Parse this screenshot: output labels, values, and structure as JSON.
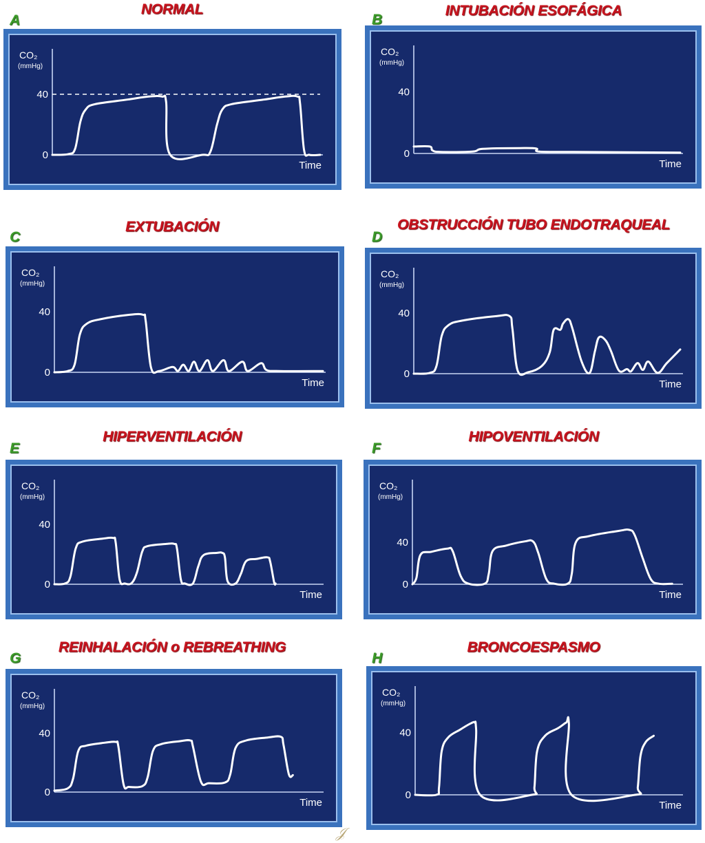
{
  "colors": {
    "title": "#c8141e",
    "letter": "#3d9b2a",
    "frame": "#3a72bd",
    "screen": "#162a6b",
    "trace": "#ffffff"
  },
  "axis": {
    "ylabel": "CO₂",
    "yunit": "(mmHg)",
    "xlabel": "Time",
    "tick_40": "40",
    "tick_0": "0"
  },
  "chart_data": [
    {
      "letter": "A",
      "title": "NORMAL",
      "type": "line",
      "ylim": [
        0,
        70
      ],
      "xlim": [
        0,
        100
      ],
      "reference_line": 40,
      "points": [
        [
          0,
          0
        ],
        [
          6,
          0.5
        ],
        [
          8.5,
          4
        ],
        [
          10.5,
          22
        ],
        [
          12.5,
          30
        ],
        [
          16,
          33.5
        ],
        [
          28,
          36.5
        ],
        [
          36,
          38.5
        ],
        [
          41,
          38.5
        ],
        [
          42.5,
          35
        ],
        [
          44,
          0
        ],
        [
          56,
          0
        ],
        [
          59,
          2
        ],
        [
          61.5,
          20
        ],
        [
          63.5,
          30
        ],
        [
          67,
          33.5
        ],
        [
          79,
          36.5
        ],
        [
          87,
          38.5
        ],
        [
          91.5,
          38.5
        ],
        [
          92.5,
          34
        ],
        [
          94,
          3
        ],
        [
          96,
          0
        ],
        [
          100,
          0
        ]
      ]
    },
    {
      "letter": "B",
      "title": "INTUBACIÓN ESOFÁGICA",
      "type": "line",
      "ylim": [
        0,
        70
      ],
      "xlim": [
        0,
        100
      ],
      "points": [
        [
          0,
          4.5
        ],
        [
          6,
          4.5
        ],
        [
          7,
          2
        ],
        [
          10,
          1
        ],
        [
          22,
          1.2
        ],
        [
          26,
          3
        ],
        [
          40,
          3.5
        ],
        [
          46,
          3.2
        ],
        [
          47,
          1.2
        ],
        [
          60,
          1
        ],
        [
          100,
          0.6
        ]
      ]
    },
    {
      "letter": "C",
      "title": "EXTUBACIÓN",
      "type": "line",
      "ylim": [
        0,
        70
      ],
      "xlim": [
        0,
        100
      ],
      "points": [
        [
          0,
          0
        ],
        [
          5,
          0.8
        ],
        [
          7.5,
          5
        ],
        [
          9.5,
          25
        ],
        [
          12,
          32
        ],
        [
          17,
          35
        ],
        [
          28,
          38
        ],
        [
          33,
          38
        ],
        [
          34,
          34
        ],
        [
          36,
          3
        ],
        [
          39,
          0.8
        ],
        [
          44,
          3.5
        ],
        [
          46,
          0.8
        ],
        [
          48,
          5
        ],
        [
          50,
          0.8
        ],
        [
          52,
          7
        ],
        [
          54,
          0.8
        ],
        [
          57,
          8
        ],
        [
          59,
          0.8
        ],
        [
          63,
          8
        ],
        [
          65,
          0.8
        ],
        [
          70,
          7
        ],
        [
          72,
          0.8
        ],
        [
          77,
          6
        ],
        [
          79,
          1.5
        ],
        [
          84,
          0.8
        ],
        [
          100,
          0.8
        ]
      ]
    },
    {
      "letter": "D",
      "title": "OBSTRUCCIÓN TUBO ENDOTRAQUEAL",
      "type": "line",
      "ylim": [
        0,
        70
      ],
      "xlim": [
        0,
        100
      ],
      "points": [
        [
          0,
          0
        ],
        [
          6,
          0.5
        ],
        [
          8.5,
          5
        ],
        [
          10.5,
          25
        ],
        [
          13,
          32
        ],
        [
          18,
          35
        ],
        [
          31,
          38
        ],
        [
          36,
          38
        ],
        [
          37,
          30
        ],
        [
          39,
          2
        ],
        [
          43,
          1
        ],
        [
          48,
          5
        ],
        [
          51,
          14
        ],
        [
          52.5,
          29
        ],
        [
          55,
          29
        ],
        [
          56,
          33
        ],
        [
          58,
          36
        ],
        [
          59.5,
          30
        ],
        [
          63,
          8
        ],
        [
          66,
          0.5
        ],
        [
          68,
          15
        ],
        [
          69.5,
          24
        ],
        [
          72,
          22
        ],
        [
          74,
          15
        ],
        [
          77,
          2
        ],
        [
          80,
          3
        ],
        [
          81.5,
          1.5
        ],
        [
          84,
          7
        ],
        [
          86,
          2.5
        ],
        [
          88,
          8
        ],
        [
          91.5,
          0.5
        ],
        [
          95,
          7
        ],
        [
          100,
          16
        ]
      ]
    },
    {
      "letter": "E",
      "title": "HIPERVENTILACIÓN",
      "type": "line",
      "ylim": [
        0,
        70
      ],
      "xlim": [
        0,
        100
      ],
      "points": [
        [
          0,
          0
        ],
        [
          4,
          0.5
        ],
        [
          6,
          5
        ],
        [
          8,
          24
        ],
        [
          10.5,
          28.5
        ],
        [
          18,
          30.5
        ],
        [
          22,
          31
        ],
        [
          23,
          28
        ],
        [
          24.5,
          3
        ],
        [
          26.5,
          0.5
        ],
        [
          29,
          0.8
        ],
        [
          31,
          8
        ],
        [
          33,
          22
        ],
        [
          35,
          25.5
        ],
        [
          42,
          27
        ],
        [
          45,
          27
        ],
        [
          46,
          24
        ],
        [
          47.5,
          3
        ],
        [
          49,
          0.5
        ],
        [
          52,
          0.5
        ],
        [
          54,
          12
        ],
        [
          56,
          19.5
        ],
        [
          61,
          21
        ],
        [
          63,
          21
        ],
        [
          64,
          18
        ],
        [
          65,
          2
        ],
        [
          68,
          0.5
        ],
        [
          70,
          7
        ],
        [
          72,
          15.5
        ],
        [
          76,
          17
        ],
        [
          80,
          18
        ],
        [
          81,
          15
        ],
        [
          82.5,
          1
        ],
        [
          83,
          0.5
        ]
      ]
    },
    {
      "letter": "F",
      "title": "HIPOVENTILACIÓN",
      "type": "line",
      "ylim": [
        0,
        100
      ],
      "xlim": [
        0,
        100
      ],
      "points": [
        [
          0,
          0
        ],
        [
          1.5,
          6
        ],
        [
          3,
          28
        ],
        [
          7,
          31
        ],
        [
          13,
          34
        ],
        [
          15,
          32
        ],
        [
          18,
          8
        ],
        [
          21,
          0.5
        ],
        [
          27,
          0.5
        ],
        [
          28.5,
          10
        ],
        [
          30,
          32
        ],
        [
          35,
          37
        ],
        [
          42,
          41
        ],
        [
          45,
          41
        ],
        [
          47,
          30
        ],
        [
          50,
          5
        ],
        [
          53,
          0.5
        ],
        [
          58,
          0.5
        ],
        [
          59.5,
          10
        ],
        [
          61,
          40
        ],
        [
          66,
          46
        ],
        [
          77,
          51
        ],
        [
          81,
          52
        ],
        [
          83,
          47
        ],
        [
          86,
          25
        ],
        [
          89,
          5
        ],
        [
          92,
          0.5
        ],
        [
          97,
          0.5
        ]
      ]
    },
    {
      "letter": "G",
      "title": "REINHALACIÓN o REBREATHING",
      "type": "line",
      "ylim": [
        0,
        70
      ],
      "xlim": [
        0,
        100
      ],
      "points": [
        [
          0,
          1
        ],
        [
          5,
          2.5
        ],
        [
          7,
          9
        ],
        [
          9,
          28
        ],
        [
          12,
          31.5
        ],
        [
          19,
          33.5
        ],
        [
          23,
          34
        ],
        [
          24,
          31
        ],
        [
          26,
          5
        ],
        [
          28,
          3.5
        ],
        [
          33,
          4
        ],
        [
          35,
          10
        ],
        [
          37,
          28
        ],
        [
          40,
          32.5
        ],
        [
          47,
          34.5
        ],
        [
          51,
          35
        ],
        [
          52,
          31
        ],
        [
          55,
          7
        ],
        [
          58,
          6
        ],
        [
          64,
          6.5
        ],
        [
          66,
          12
        ],
        [
          68,
          30
        ],
        [
          72,
          35
        ],
        [
          80,
          37
        ],
        [
          85,
          37.5
        ],
        [
          86,
          32
        ],
        [
          88,
          12
        ],
        [
          89.5,
          11.5
        ]
      ]
    },
    {
      "letter": "H",
      "title": "BRONCOESPASMO",
      "type": "line",
      "ylim": [
        0,
        70
      ],
      "xlim": [
        0,
        100
      ],
      "points": [
        [
          0,
          0
        ],
        [
          8,
          0
        ],
        [
          9,
          5
        ],
        [
          10,
          28
        ],
        [
          12.5,
          37
        ],
        [
          17,
          42
        ],
        [
          21,
          46
        ],
        [
          22.5,
          46.5
        ],
        [
          23,
          42
        ],
        [
          24.5,
          0
        ],
        [
          44,
          0
        ],
        [
          45,
          5
        ],
        [
          46,
          28
        ],
        [
          49,
          38
        ],
        [
          54,
          43
        ],
        [
          57,
          46.5
        ],
        [
          58,
          46
        ],
        [
          59,
          0
        ],
        [
          83,
          0
        ],
        [
          84,
          5
        ],
        [
          85,
          25
        ],
        [
          87,
          34
        ],
        [
          90,
          38
        ]
      ]
    }
  ]
}
